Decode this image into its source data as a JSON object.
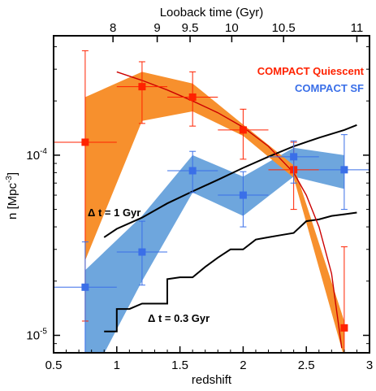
{
  "chart_data": {
    "type": "scatter",
    "xlabel": "redshift",
    "ylabel": "n [Mpc",
    "ylabel_exp": "-3",
    "ylabel_close": "]",
    "top_axis_label": "Looback time (Gyr)",
    "y_scale": "log",
    "xlim": [
      0.5,
      3.0
    ],
    "ylim": [
      8e-06,
      0.00046
    ],
    "x_ticks": [
      0.5,
      1,
      1.5,
      2,
      2.5,
      3
    ],
    "x_tick_labels": [
      "0.5",
      "1",
      "1.5",
      "2",
      "2.5",
      "3"
    ],
    "y_ticks": [
      1e-05,
      0.0001
    ],
    "y_tick_labels": [
      {
        "base": "10",
        "exp": "-5"
      },
      {
        "base": "10",
        "exp": "-4"
      }
    ],
    "top_ticks": [
      {
        "label": "8",
        "z": 0.97
      },
      {
        "label": "9",
        "z": 1.32
      },
      {
        "label": "9.5",
        "z": 1.58
      },
      {
        "label": "10",
        "z": 1.91
      },
      {
        "label": "10.5",
        "z": 2.32
      },
      {
        "label": "11",
        "z": 2.9
      }
    ],
    "legend": {
      "placement": "top-right",
      "items": [
        {
          "name": "COMPACT Quiescent",
          "color": "#ff2200"
        },
        {
          "name": "COMPACT SF",
          "color": "#3a6fe8"
        }
      ]
    },
    "series": [
      {
        "name": "COMPACT Quiescent",
        "color": "#ff2200",
        "band_color": "#f7902d",
        "points": [
          {
            "x": 0.75,
            "y": 0.000118,
            "xerr": 0.25,
            "ylo": 1.2e-05,
            "yhi": 0.00038
          },
          {
            "x": 1.2,
            "y": 0.00024,
            "xerr": 0.2,
            "ylo": 0.00015,
            "yhi": 0.00033
          },
          {
            "x": 1.6,
            "y": 0.00021,
            "xerr": 0.2,
            "ylo": 0.000145,
            "yhi": 0.00029
          },
          {
            "x": 2.0,
            "y": 0.000138,
            "xerr": 0.2,
            "ylo": 9.5e-05,
            "yhi": 0.00018
          },
          {
            "x": 2.4,
            "y": 8.3e-05,
            "xerr": 0.2,
            "ylo": 5e-05,
            "yhi": 0.000118
          },
          {
            "x": 2.8,
            "y": 1.1e-05,
            "xerr": 0.0,
            "ylo": 5.5e-06,
            "yhi": 3.1e-05
          }
        ],
        "band": {
          "x": [
            0.75,
            1.2,
            1.6,
            2.0,
            2.4,
            2.8
          ],
          "lower": [
            2.6e-05,
            0.000155,
            0.000175,
            0.000128,
            7.5e-05,
            7.5e-06
          ],
          "upper": [
            0.00021,
            0.00029,
            0.00025,
            0.000148,
            8.8e-05,
            1.2e-05
          ]
        }
      },
      {
        "name": "COMPACT SF",
        "color": "#3a6fe8",
        "band_color": "#6ea6dd",
        "points": [
          {
            "x": 0.75,
            "y": 1.85e-05,
            "xerr": 0.25,
            "ylo": 8e-06,
            "yhi": 3.3e-05
          },
          {
            "x": 1.2,
            "y": 2.9e-05,
            "xerr": 0.2,
            "ylo": 1.9e-05,
            "yhi": 4.3e-05
          },
          {
            "x": 1.6,
            "y": 8.2e-05,
            "xerr": 0.2,
            "ylo": 6.2e-05,
            "yhi": 0.000105
          },
          {
            "x": 2.0,
            "y": 6e-05,
            "xerr": 0.2,
            "ylo": 4e-05,
            "yhi": 8.1e-05
          },
          {
            "x": 2.4,
            "y": 9.8e-05,
            "xerr": 0.2,
            "ylo": 7e-05,
            "yhi": 0.00012
          },
          {
            "x": 2.8,
            "y": 8.3e-05,
            "xerr": 0.2,
            "ylo": 5e-05,
            "yhi": 0.00013
          }
        ],
        "band": {
          "x": [
            0.75,
            1.2,
            1.6,
            2.0,
            2.4,
            2.8
          ],
          "lower": [
            5e-06,
            2e-05,
            6.2e-05,
            4.6e-05,
            7.6e-05,
            6.5e-05
          ],
          "upper": [
            2.3e-05,
            4.6e-05,
            0.0001,
            7.6e-05,
            0.00011,
            0.0001
          ]
        }
      }
    ],
    "model_curve": {
      "color": "#cc0000",
      "x": [
        1.0,
        1.2,
        1.4,
        1.6,
        1.8,
        2.0,
        2.2,
        2.4,
        2.5,
        2.6,
        2.7,
        2.78
      ],
      "y": [
        0.00029,
        0.00026,
        0.00023,
        0.0002,
        0.000172,
        0.000143,
        0.000112,
        8e-05,
        6e-05,
        4e-05,
        2.2e-05,
        8.5e-06
      ]
    },
    "reference_lines": [
      {
        "label": "Δ t = 1 Gyr",
        "x": [
          0.9,
          1.0,
          1.2,
          1.4,
          1.6,
          1.8,
          2.0,
          2.2,
          2.4,
          2.6,
          2.8,
          2.9
        ],
        "y": [
          3.5e-05,
          3.9e-05,
          4.5e-05,
          5.4e-05,
          6.3e-05,
          7.3e-05,
          8.5e-05,
          9.8e-05,
          0.000112,
          0.000125,
          0.000138,
          0.000147
        ]
      },
      {
        "label": "Δ t = 0.3 Gyr",
        "x": [
          0.9,
          0.95,
          1.0,
          1.1,
          1.2,
          1.3,
          1.4,
          1.5,
          1.6,
          1.7,
          1.8,
          1.9,
          2.0,
          2.1,
          2.2,
          2.3,
          2.4,
          2.5,
          2.6,
          2.7,
          2.8,
          2.9
        ],
        "y": [
          1.05e-05,
          1.05e-05,
          1.4e-05,
          1.4e-05,
          1.5e-05,
          1.5e-05,
          2.05e-05,
          2.1e-05,
          2.1e-05,
          2.4e-05,
          2.7e-05,
          3e-05,
          3e-05,
          3.4e-05,
          3.5e-05,
          3.6e-05,
          3.7e-05,
          4.3e-05,
          4.4e-05,
          4.6e-05,
          4.7e-05,
          4.8e-05
        ]
      }
    ]
  }
}
